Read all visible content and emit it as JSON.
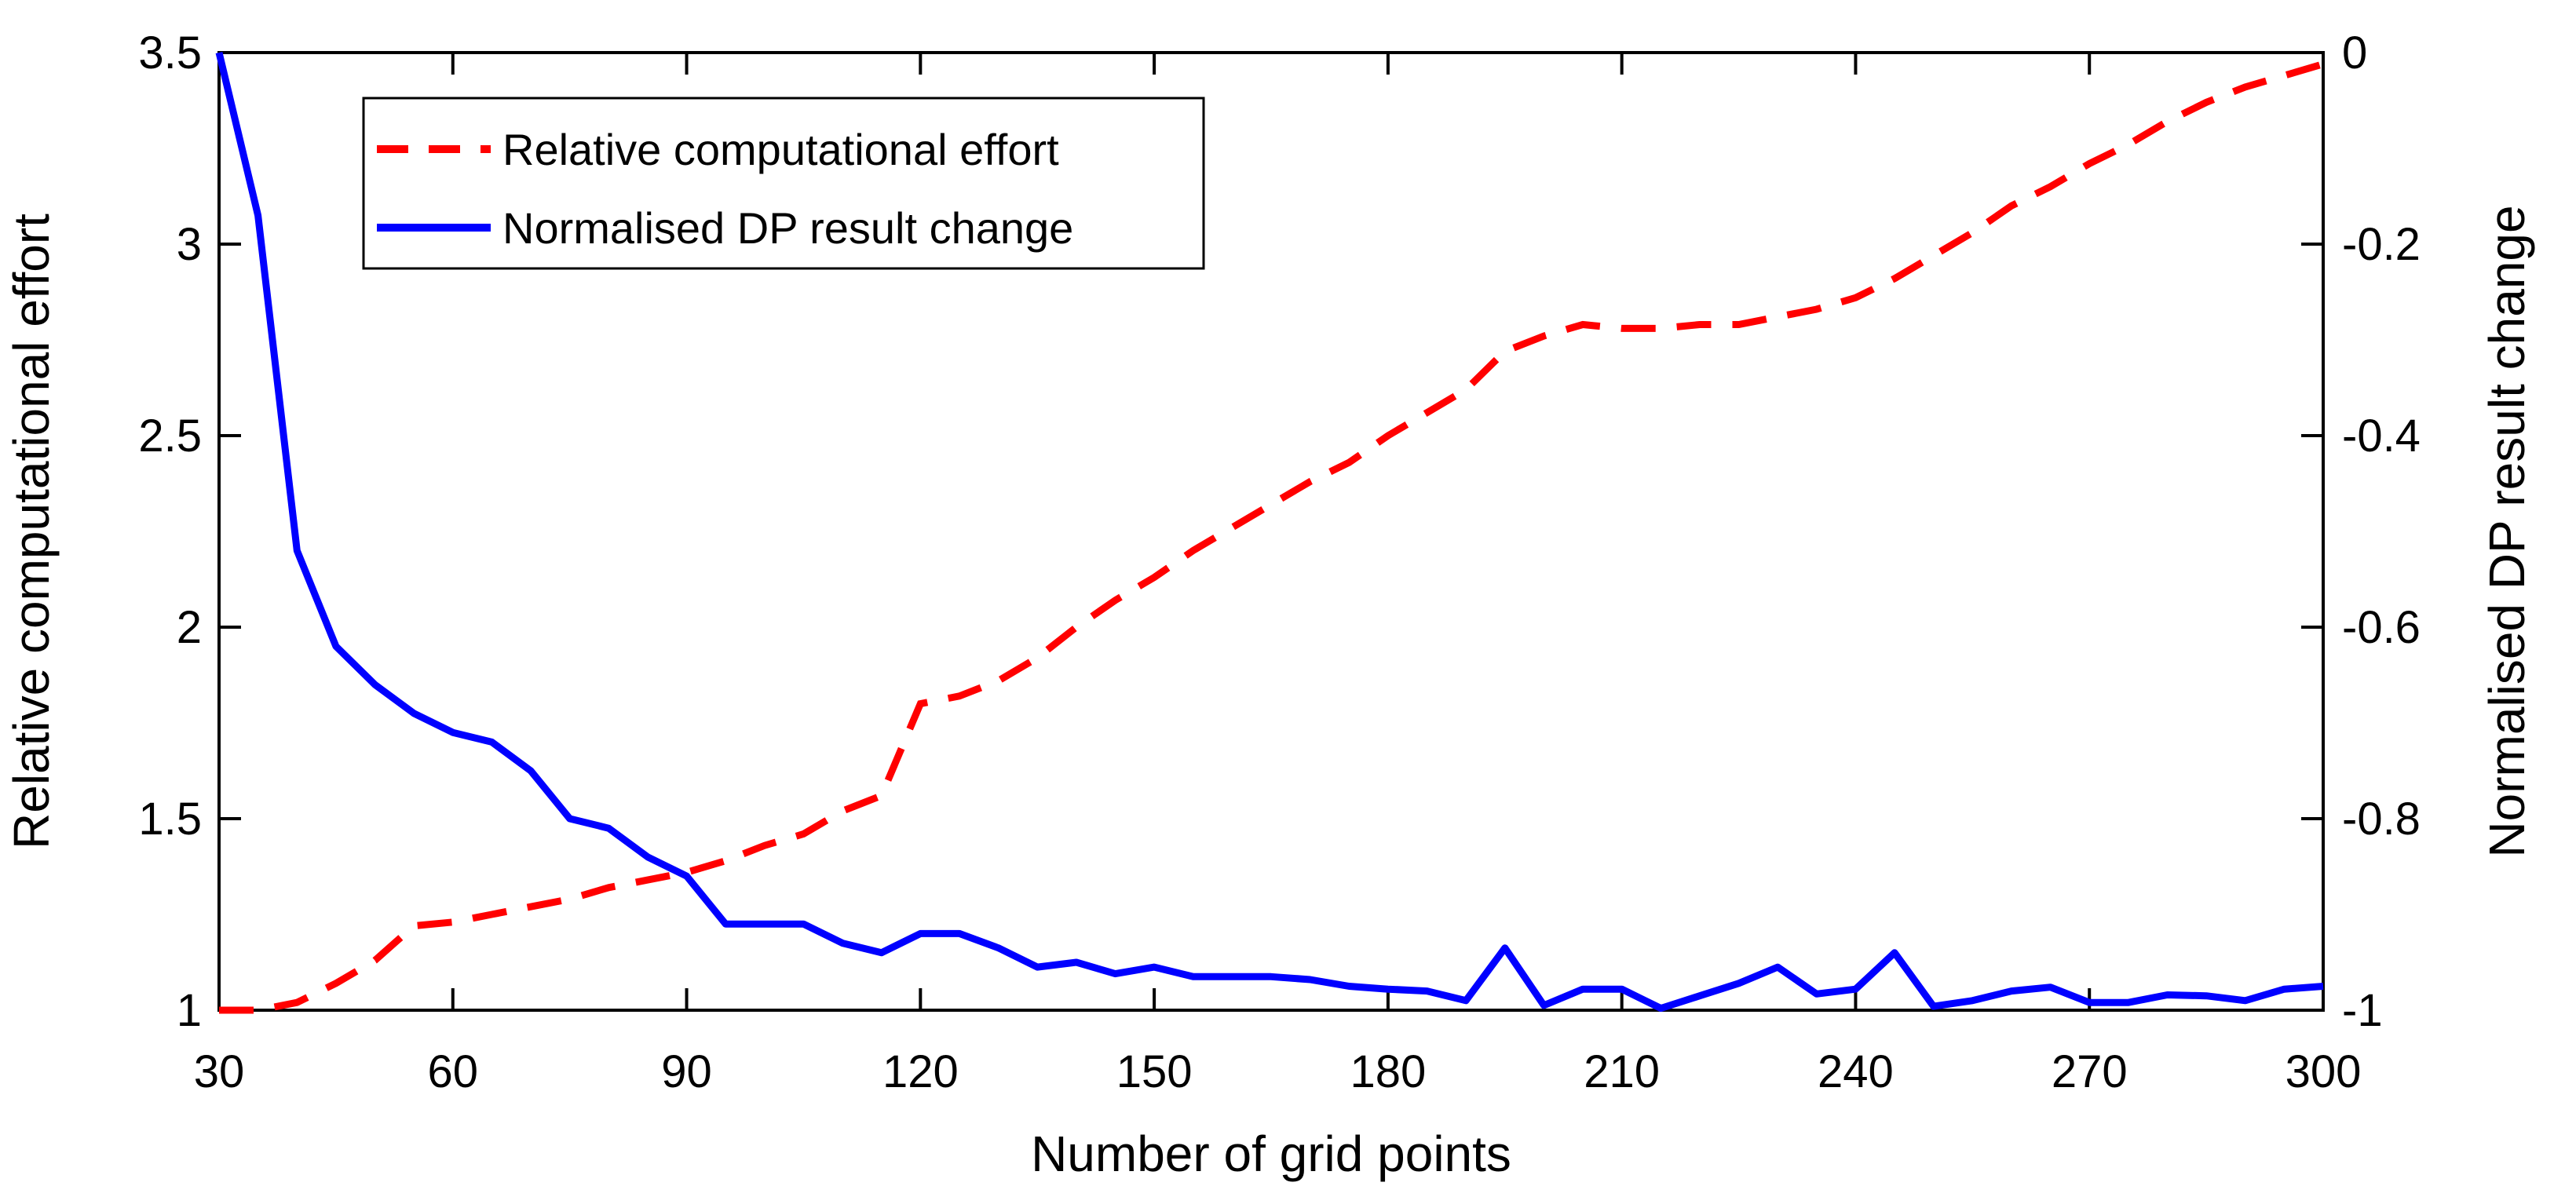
{
  "figure": {
    "xlabel": "Number of grid points",
    "ylabel_left": "Relative computational effort",
    "ylabel_right": "Normalised DP result change",
    "background_color": "#ffffff",
    "axis_color": "#000000"
  },
  "legend": {
    "items": [
      {
        "label": "Relative computational effort",
        "color": "#ff0000",
        "style": "dashed"
      },
      {
        "label": "Normalised DP result change",
        "color": "#0000ff",
        "style": "solid"
      }
    ]
  },
  "chart_data": {
    "type": "line",
    "title": "",
    "xlabel": "Number of grid points",
    "grid": false,
    "legend_position": "top-left-inside",
    "x": [
      30,
      35,
      40,
      45,
      50,
      55,
      60,
      65,
      70,
      75,
      80,
      85,
      90,
      95,
      100,
      105,
      110,
      115,
      120,
      125,
      130,
      135,
      140,
      145,
      150,
      155,
      160,
      165,
      170,
      175,
      180,
      185,
      190,
      195,
      200,
      205,
      210,
      215,
      220,
      225,
      230,
      235,
      240,
      245,
      250,
      255,
      260,
      265,
      270,
      275,
      280,
      285,
      290,
      295,
      300
    ],
    "series": [
      {
        "name": "Relative computational effort",
        "axis": "left",
        "color": "#ff0000",
        "style": "dashed",
        "values": [
          1.0,
          1.0,
          1.02,
          1.07,
          1.13,
          1.22,
          1.23,
          1.25,
          1.27,
          1.29,
          1.32,
          1.34,
          1.36,
          1.39,
          1.43,
          1.46,
          1.52,
          1.56,
          1.8,
          1.82,
          1.86,
          1.92,
          2.0,
          2.07,
          2.13,
          2.2,
          2.26,
          2.32,
          2.38,
          2.43,
          2.5,
          2.56,
          2.62,
          2.72,
          2.76,
          2.79,
          2.78,
          2.78,
          2.79,
          2.79,
          2.81,
          2.83,
          2.86,
          2.91,
          2.97,
          3.03,
          3.1,
          3.15,
          3.21,
          3.26,
          3.32,
          3.37,
          3.41,
          3.44,
          3.47
        ]
      },
      {
        "name": "Normalised DP result change",
        "axis": "right",
        "color": "#0000ff",
        "style": "solid",
        "values": [
          0.0,
          -0.17,
          -0.52,
          -0.62,
          -0.66,
          -0.69,
          -0.71,
          -0.72,
          -0.75,
          -0.8,
          -0.81,
          -0.84,
          -0.86,
          -0.91,
          -0.91,
          -0.91,
          -0.93,
          -0.94,
          -0.92,
          -0.92,
          -0.935,
          -0.955,
          -0.95,
          -0.962,
          -0.955,
          -0.965,
          -0.965,
          -0.965,
          -0.968,
          -0.975,
          -0.978,
          -0.98,
          -0.99,
          -0.935,
          -0.995,
          -0.978,
          -0.978,
          -0.998,
          -0.985,
          -0.972,
          -0.955,
          -0.983,
          -0.978,
          -0.94,
          -0.996,
          -0.99,
          -0.98,
          -0.976,
          -0.992,
          -0.992,
          -0.984,
          -0.985,
          -0.99,
          -0.978,
          -0.975
        ]
      }
    ],
    "axes": {
      "x": {
        "min": 30,
        "max": 300,
        "ticks": [
          30,
          60,
          90,
          120,
          150,
          180,
          210,
          240,
          270,
          300
        ],
        "tick_labels": [
          "30",
          "60",
          "90",
          "120",
          "150",
          "180",
          "210",
          "240",
          "270",
          "300"
        ]
      },
      "left": {
        "label": "Relative computational effort",
        "min": 1,
        "max": 3.5,
        "ticks": [
          1,
          1.5,
          2,
          2.5,
          3,
          3.5
        ],
        "tick_labels": [
          "1",
          "1.5",
          "2",
          "2.5",
          "3",
          "3.5"
        ]
      },
      "right": {
        "label": "Normalised DP result change",
        "min": -1,
        "max": 0,
        "ticks": [
          -1,
          -0.8,
          -0.6,
          -0.4,
          -0.2,
          0
        ],
        "tick_labels": [
          "-1",
          "-0.8",
          "-0.6",
          "-0.4",
          "-0.2",
          "0"
        ]
      }
    }
  }
}
